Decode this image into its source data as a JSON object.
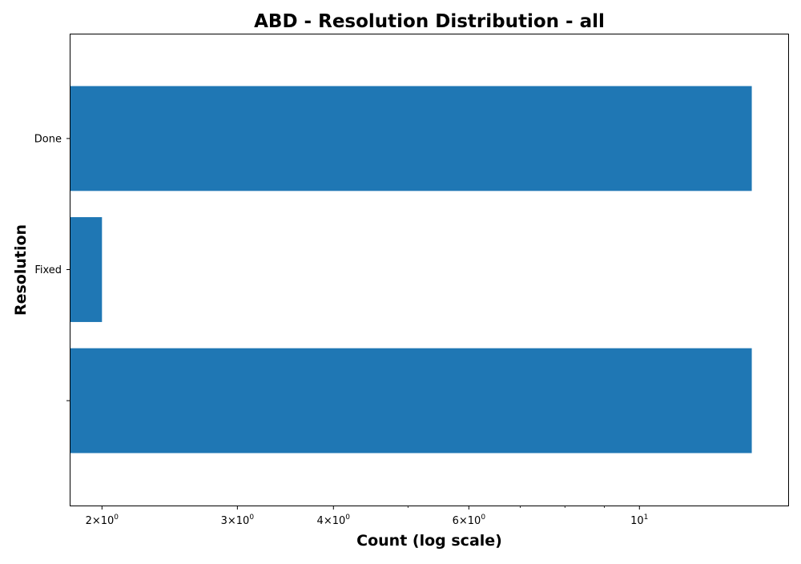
{
  "chart_data": {
    "type": "bar",
    "orientation": "horizontal",
    "title": "ABD - Resolution Distribution - all",
    "xlabel": "Count (log scale)",
    "ylabel": "Resolution",
    "x_scale": "log",
    "xlim": [
      1.82,
      15.65
    ],
    "categories": [
      "Done",
      "Fixed",
      ""
    ],
    "values": [
      14,
      2,
      14
    ],
    "bar_color": "#1f77b4",
    "grid": false,
    "legend": "none",
    "x_major_ticks": [
      {
        "value": 2,
        "mantissa": "2",
        "exponent": "0"
      },
      {
        "value": 3,
        "mantissa": "3",
        "exponent": "0"
      },
      {
        "value": 4,
        "mantissa": "4",
        "exponent": "0"
      },
      {
        "value": 6,
        "mantissa": "6",
        "exponent": "0"
      },
      {
        "value": 10,
        "mantissa": "",
        "exponent": "1"
      }
    ],
    "x_minor_ticks": [
      5,
      7,
      8,
      9
    ]
  }
}
